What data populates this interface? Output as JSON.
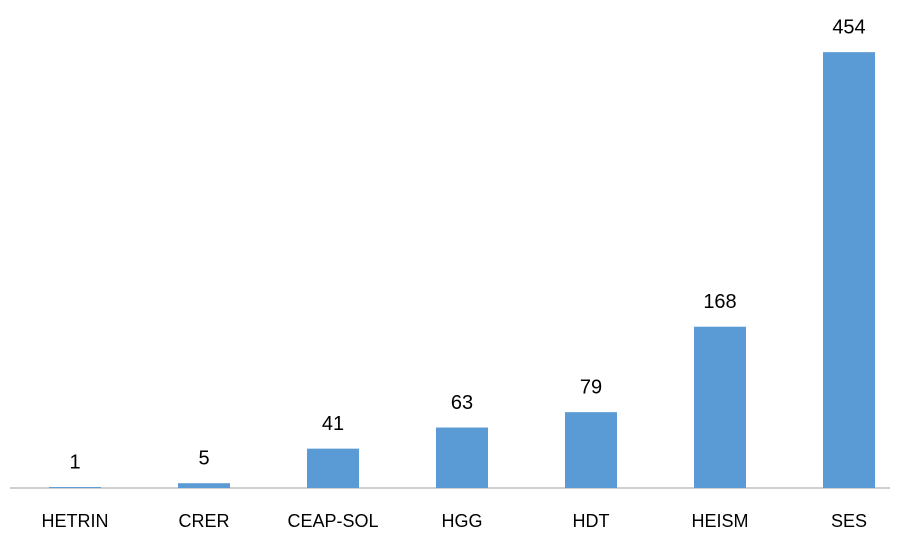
{
  "chart_data": {
    "type": "bar",
    "categories": [
      "HETRIN",
      "CRER",
      "CEAP-SOL",
      "HGG",
      "HDT",
      "HEISM",
      "SES"
    ],
    "values": [
      1,
      5,
      41,
      63,
      79,
      168,
      454
    ],
    "color": "#5b9bd5",
    "ylim": [
      0,
      500
    ]
  }
}
